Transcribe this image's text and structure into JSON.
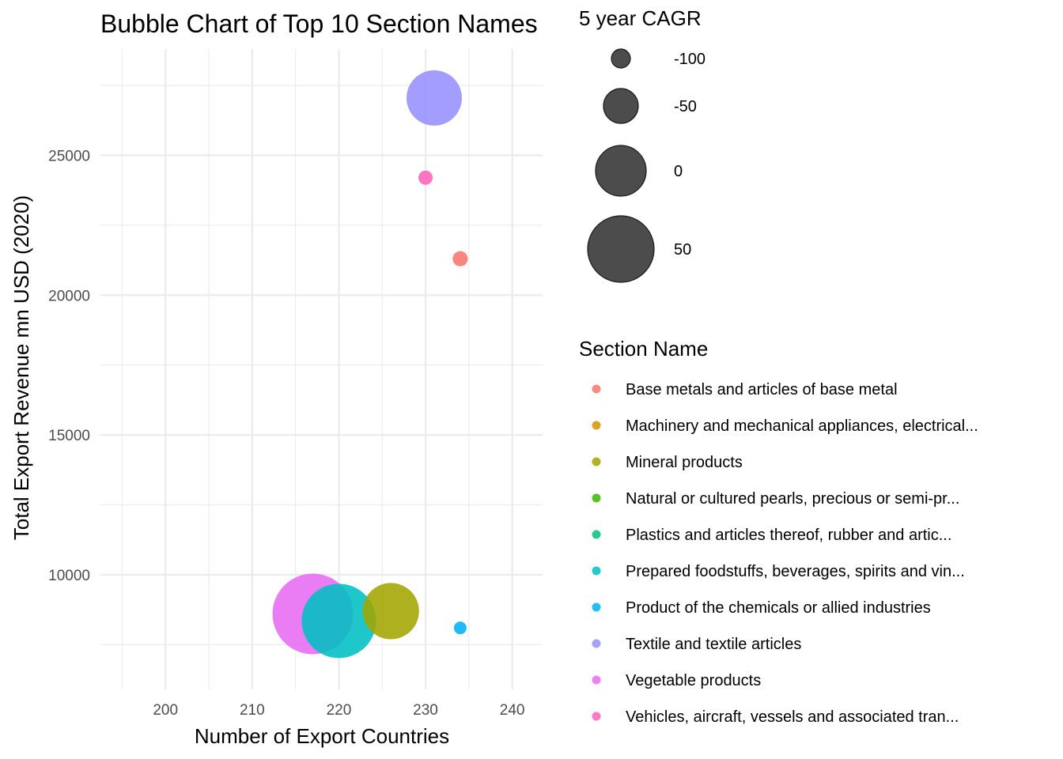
{
  "chart_data": {
    "type": "scatter",
    "title": "Bubble Chart of Top 10 Section Names",
    "xlabel": "Number of Export Countries",
    "ylabel": "Total Export Revenue mn USD (2020)",
    "xlim": [
      192.5,
      243.5
    ],
    "ylim": [
      5900,
      28800
    ],
    "x_ticks": [
      200,
      210,
      220,
      230,
      240
    ],
    "y_ticks": [
      10000,
      15000,
      20000,
      25000
    ],
    "x_tick_labels": [
      "200",
      "210",
      "220",
      "230",
      "240"
    ],
    "y_tick_labels": [
      "10000",
      "15000",
      "20000",
      "25000"
    ],
    "grid": true,
    "size_legend": {
      "title": "5 year CAGR",
      "entries": [
        {
          "label": "-100",
          "value": -100
        },
        {
          "label": "-50",
          "value": -50
        },
        {
          "label": "0",
          "value": 0
        },
        {
          "label": "50",
          "value": 50
        }
      ]
    },
    "color_legend": {
      "title": "Section Name",
      "entries": [
        {
          "label": "Base metals and articles of base metal",
          "color": "#F8766D"
        },
        {
          "label": "Machinery and mechanical appliances, electrical...",
          "color": "#D89000"
        },
        {
          "label": "Mineral products",
          "color": "#A3A500"
        },
        {
          "label": "Natural or cultured pearls, precious or semi-pr...",
          "color": "#39B600"
        },
        {
          "label": "Plastics and articles thereof, rubber and artic...",
          "color": "#00BF7D"
        },
        {
          "label": "Prepared foodstuffs, beverages, spirits and vin...",
          "color": "#00BFC4"
        },
        {
          "label": "Product of the chemicals or allied industries",
          "color": "#00B0F6"
        },
        {
          "label": "Textile and textile articles",
          "color": "#9590FF"
        },
        {
          "label": "Vegetable products",
          "color": "#E76BF3"
        },
        {
          "label": "Vehicles, aircraft, vessels and associated tran...",
          "color": "#FF62BC"
        }
      ]
    },
    "points": [
      {
        "section": "Textile and textile articles",
        "x": 231,
        "y": 27050,
        "cagr": 15,
        "color": "#9590FF"
      },
      {
        "section": "Vehicles, aircraft, vessels and associated tran...",
        "x": 230,
        "y": 24200,
        "cagr": -115,
        "color": "#FF62BC"
      },
      {
        "section": "Base metals and articles of base metal",
        "x": 234,
        "y": 21300,
        "cagr": -112,
        "color": "#F8766D"
      },
      {
        "section": "Vegetable products",
        "x": 217,
        "y": 8600,
        "cagr": 95,
        "color": "#E76BF3"
      },
      {
        "section": "Prepared foodstuffs, beverages, spirits and vin...",
        "x": 220,
        "y": 8350,
        "cagr": 75,
        "color": "#00BFC4"
      },
      {
        "section": "Mineral products",
        "x": 226,
        "y": 8700,
        "cagr": 18,
        "color": "#A3A500"
      },
      {
        "section": "Product of the chemicals or allied industries",
        "x": 234,
        "y": 8100,
        "cagr": -120,
        "color": "#00B0F6"
      }
    ]
  }
}
